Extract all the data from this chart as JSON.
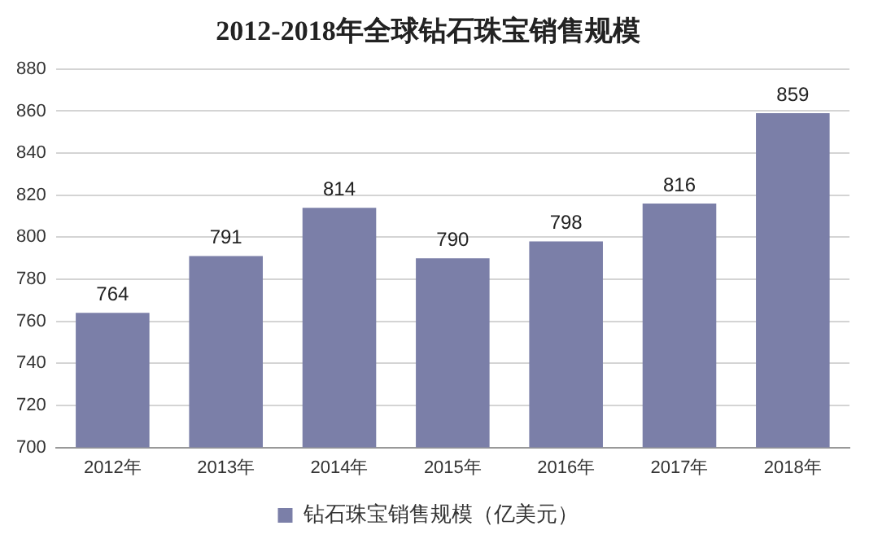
{
  "chart_data": {
    "type": "bar",
    "title": "2012-2018年全球钻石珠宝销售规模",
    "categories": [
      "2012年",
      "2013年",
      "2014年",
      "2015年",
      "2016年",
      "2017年",
      "2018年"
    ],
    "series": [
      {
        "name": "钻石珠宝销售规模（亿美元）",
        "color": "#7b7fa8",
        "values": [
          764,
          791,
          814,
          790,
          798,
          816,
          859
        ]
      }
    ],
    "ylim": [
      700,
      880
    ],
    "yticks": [
      700,
      720,
      740,
      760,
      780,
      800,
      820,
      840,
      860,
      880
    ],
    "grid": "y",
    "legend": "bottom",
    "data_labels": true
  }
}
